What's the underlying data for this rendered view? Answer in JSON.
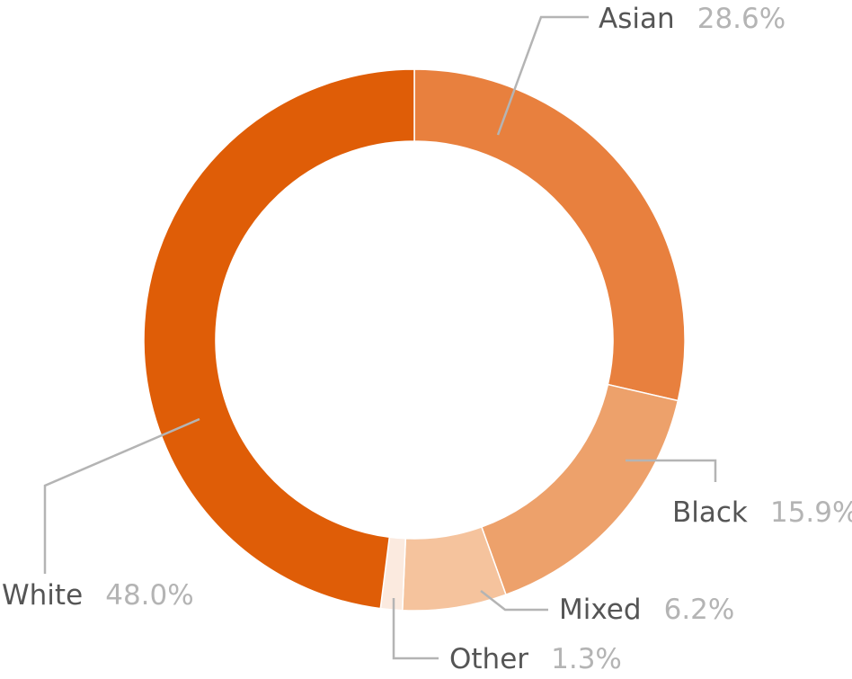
{
  "chart_data": {
    "type": "pie",
    "title": "",
    "slices": [
      {
        "label": "Asian",
        "value": 28.6,
        "value_label": "28.6%",
        "color": "#e8803e"
      },
      {
        "label": "Black",
        "value": 15.9,
        "value_label": "15.9%",
        "color": "#eda16b"
      },
      {
        "label": "Mixed",
        "value": 6.2,
        "value_label": "6.2%",
        "color": "#f5c39d"
      },
      {
        "label": "Other",
        "value": 1.3,
        "value_label": "1.3%",
        "color": "#fbeadf"
      },
      {
        "label": "White",
        "value": 48.0,
        "value_label": "48.0%",
        "color": "#df5d07"
      }
    ],
    "legend": "none"
  }
}
